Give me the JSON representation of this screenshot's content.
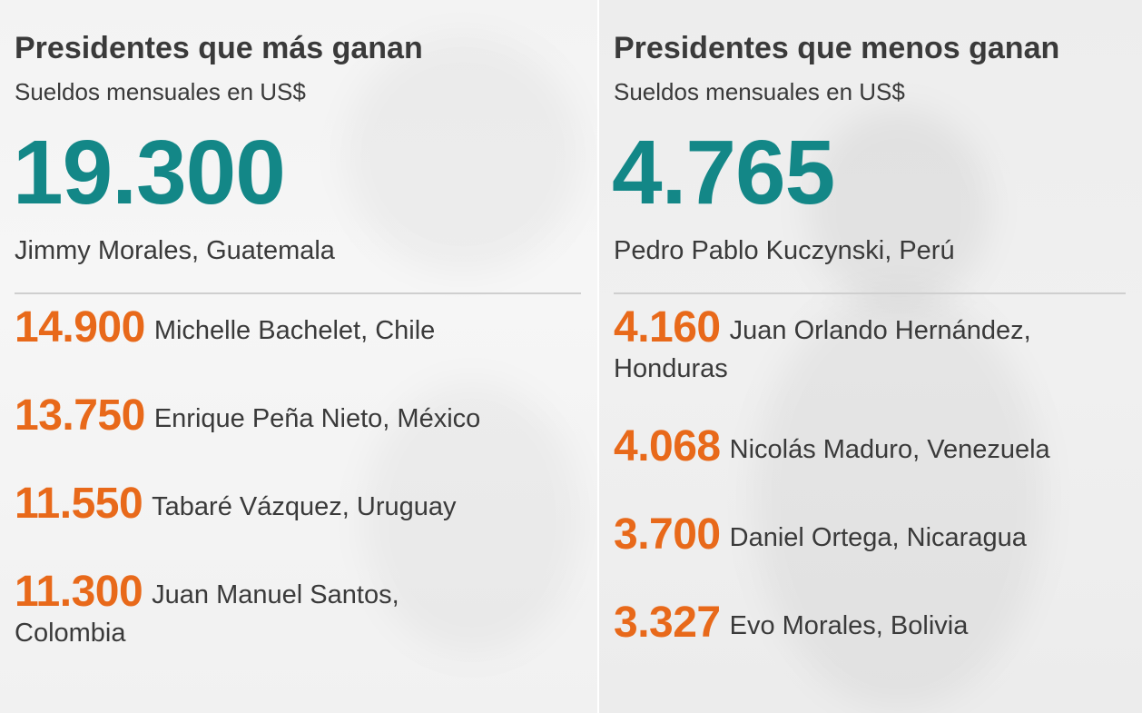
{
  "left": {
    "title": "Presidentes que más ganan",
    "subtitle": "Sueldos mensuales en US$",
    "top": {
      "value": "19.300",
      "name": "Jimmy Morales, Guatemala"
    },
    "items": [
      {
        "value": "14.900",
        "name": "Michelle Bachelet, Chile"
      },
      {
        "value": "13.750",
        "name": "Enrique Peña Nieto, México"
      },
      {
        "value": "11.550",
        "name": "Tabaré Vázquez, Uruguay"
      },
      {
        "value": "11.300",
        "name": "Juan Manuel Santos, Colombia"
      }
    ]
  },
  "right": {
    "title": "Presidentes que menos ganan",
    "subtitle": "Sueldos mensuales en US$",
    "top": {
      "value": "4.765",
      "name": "Pedro Pablo Kuczynski, Perú"
    },
    "items": [
      {
        "value": "4.160",
        "name": "Juan Orlando Hernández, Honduras"
      },
      {
        "value": "4.068",
        "name": "Nicolás Maduro, Venezuela"
      },
      {
        "value": "3.700",
        "name": "Daniel Ortega, Nicaragua"
      },
      {
        "value": "3.327",
        "name": "Evo Morales, Bolivia"
      }
    ]
  },
  "colors": {
    "teal": "#138787",
    "orange": "#e8691a",
    "text": "#3a3a3a",
    "rule": "#cfcfcf"
  }
}
